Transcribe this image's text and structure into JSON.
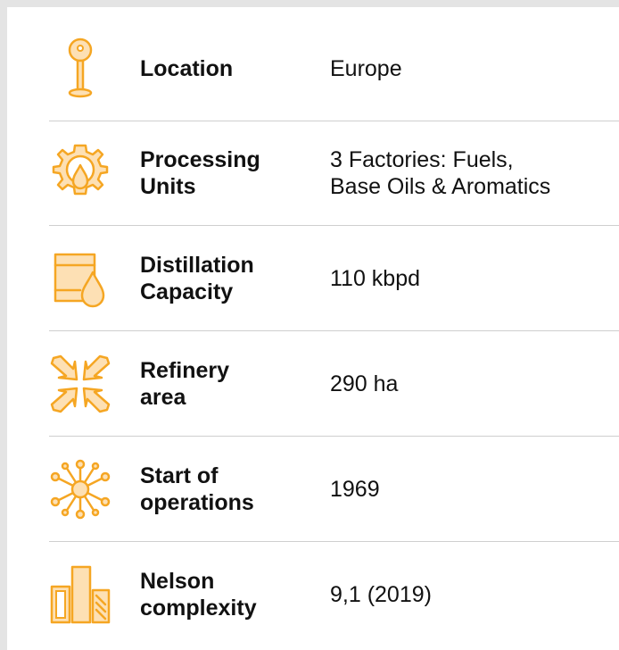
{
  "rows": [
    {
      "label": [
        "Location"
      ],
      "value": [
        "Europe"
      ]
    },
    {
      "label": [
        "Processing",
        "Units"
      ],
      "value": [
        "3 Factories: Fuels,",
        "Base Oils & Aromatics"
      ]
    },
    {
      "label": [
        "Distillation",
        "Capacity"
      ],
      "value": [
        "110 kbpd"
      ]
    },
    {
      "label": [
        "Refinery",
        "area"
      ],
      "value": [
        "290 ha"
      ]
    },
    {
      "label": [
        "Start of",
        "operations"
      ],
      "value": [
        "1969"
      ]
    },
    {
      "label": [
        "Nelson",
        "complexity"
      ],
      "value": [
        "9,1 (2019)"
      ]
    }
  ]
}
